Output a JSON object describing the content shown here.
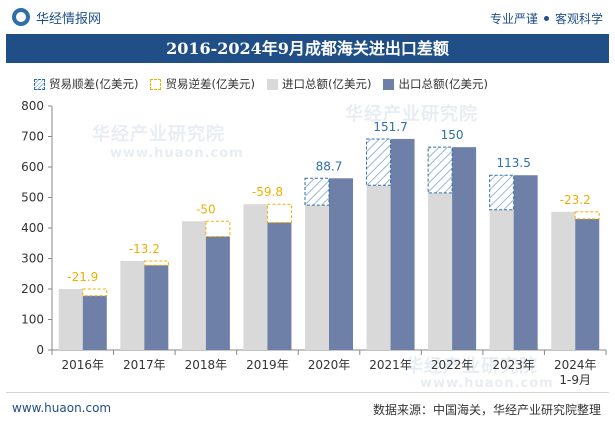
{
  "header": {
    "brand": "华经情报网",
    "tag_left": "专业严谨",
    "tag_right": "客观科学"
  },
  "footer": {
    "website": "www.huaon.com",
    "source": "数据来源：中国海关，华经产业研究院整理"
  },
  "watermark": {
    "text_cn": "华经产业研究院",
    "text_en": "www.huaon.com"
  },
  "colors": {
    "title_band": "#1f4f86",
    "import": "#d9d9d9",
    "export": "#6e7fa8",
    "surplus_label": "#2f6fa8",
    "deficit_label": "#f0b000"
  },
  "chart_data": {
    "type": "bar",
    "title": "2016-2024年9月成都海关进出口差额",
    "categories": [
      "2016年",
      "2017年",
      "2018年",
      "2019年",
      "2020年",
      "2021年",
      "2022年",
      "2023年",
      "2024年\n1-9月"
    ],
    "series": [
      {
        "name": "进口总额(亿美元)",
        "values": [
          200,
          292,
          422,
          478,
          475,
          540,
          515,
          460,
          453
        ]
      },
      {
        "name": "出口总额(亿美元)",
        "values": [
          178,
          278,
          372,
          418,
          563,
          692,
          665,
          573,
          430
        ]
      }
    ],
    "balance": {
      "name_surplus": "贸易顺差(亿美元)",
      "name_deficit": "贸易逆差(亿美元)",
      "values": [
        -21.9,
        -13.2,
        -50,
        -59.8,
        88.7,
        151.7,
        150,
        113.5,
        -23.2
      ],
      "labels": [
        "-21.9",
        "-13.2",
        "-50",
        "-59.8",
        "88.7",
        "151.7",
        "150",
        "113.5",
        "-23.2"
      ]
    },
    "y_ticks": [
      "0",
      "100",
      "200",
      "300",
      "400",
      "500",
      "600",
      "700",
      "800"
    ],
    "ylim": [
      0,
      800
    ],
    "grid": false,
    "legend_position": "top-left"
  }
}
